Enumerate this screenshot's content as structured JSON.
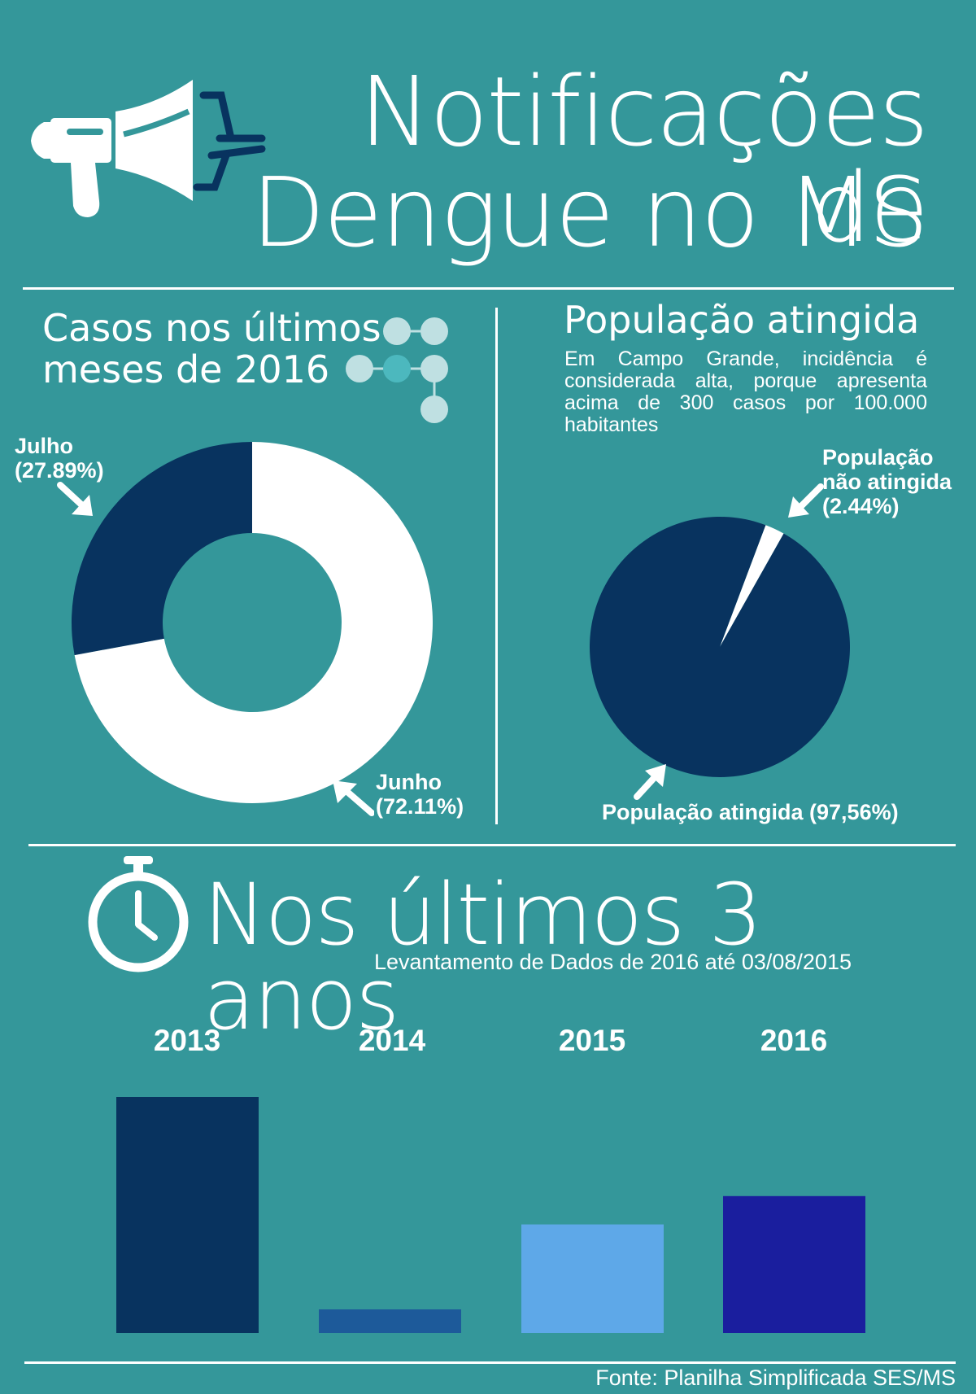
{
  "header": {
    "title_line1": "Notificações de",
    "title_line2": "Dengue no MS"
  },
  "left_section": {
    "title_line1": "Casos nos últimos",
    "title_line2": "meses de 2016"
  },
  "right_section": {
    "title": "População atingida",
    "description": "Em Campo Grande, incidência é considerada alta, porque apresenta acima de 300 casos por 100.000 habitantes"
  },
  "donut_labels": {
    "julho_name": "Julho",
    "julho_pct": "(27.89%)",
    "junho_name": "Junho",
    "junho_pct": "(72.11%)"
  },
  "pie_labels": {
    "nao_line1": "População",
    "nao_line2": "não atingida",
    "nao_pct": "(2.44%)",
    "atingida": "População atingida (97,56%)"
  },
  "bottom_section": {
    "title": "Nos últimos 3 anos",
    "subtitle": "Levantamento de Dados de 2016 até 03/08/2015"
  },
  "footer": {
    "source": "Fonte: Planilha Simplificada SES/MS"
  },
  "colors": {
    "background": "#34979a",
    "dark_navy": "#08335f",
    "white": "#ffffff",
    "bar_2014": "#1d5a9a",
    "bar_2015": "#5ea8e8",
    "bar_2016": "#1a1e9e"
  },
  "icons": [
    "megaphone-icon",
    "network-nodes-icon",
    "stopwatch-icon",
    "arrow-icon"
  ],
  "chart_data": [
    {
      "type": "pie",
      "variant": "donut",
      "title": "Casos nos últimos meses de 2016",
      "categories": [
        "Julho",
        "Junho"
      ],
      "values": [
        27.89,
        72.11
      ],
      "colors": [
        "#08335f",
        "#ffffff"
      ]
    },
    {
      "type": "pie",
      "title": "População atingida",
      "categories": [
        "População não atingida",
        "População atingida"
      ],
      "values": [
        2.44,
        97.56
      ],
      "colors": [
        "#ffffff",
        "#08335f"
      ]
    },
    {
      "type": "bar",
      "title": "Nos últimos 3 anos",
      "categories": [
        "2013",
        "2014",
        "2015",
        "2016"
      ],
      "values": [
        100,
        10,
        46,
        58
      ],
      "colors": [
        "#08335f",
        "#1d5a9a",
        "#5ea8e8",
        "#1a1e9e"
      ],
      "ylim": [
        0,
        100
      ],
      "value_axis": "none",
      "grid": false
    }
  ]
}
